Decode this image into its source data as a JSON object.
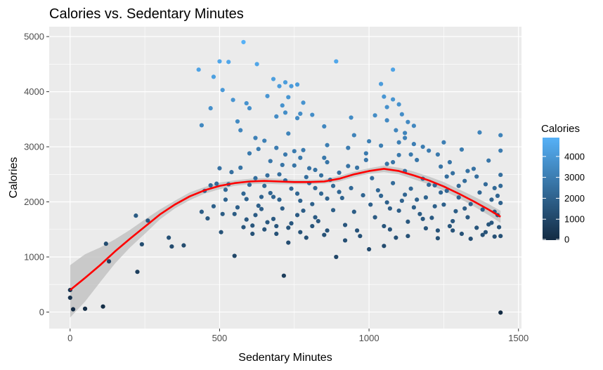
{
  "chart_data": {
    "type": "scatter",
    "title": "Calories vs. Sedentary Minutes",
    "xlabel": "Sedentary Minutes",
    "ylabel": "Calories",
    "xlim": [
      -70,
      1510
    ],
    "ylim": [
      -300,
      5180
    ],
    "x_ticks": [
      0,
      500,
      1000,
      1500
    ],
    "x_tick_labels": [
      "0",
      "500",
      "1000",
      "1500"
    ],
    "y_ticks": [
      0,
      1000,
      2000,
      3000,
      4000,
      5000
    ],
    "y_tick_labels": [
      "0",
      "1000",
      "2000",
      "3000",
      "4000",
      "5000"
    ],
    "grid": true,
    "panel_background": "#ebebeb",
    "color_scale": {
      "low": "#132b43",
      "high": "#56b1f7",
      "min": 0,
      "max": 4900
    },
    "legend": {
      "title": "Calories",
      "position": "right",
      "breaks": [
        0,
        1000,
        2000,
        3000,
        4000
      ],
      "labels": [
        "0",
        "1000",
        "2000",
        "3000",
        "4000"
      ]
    },
    "smooth": {
      "color": "#ff0000",
      "band_color": "#bebebe",
      "x": [
        0,
        50,
        100,
        150,
        200,
        250,
        300,
        350,
        400,
        450,
        500,
        550,
        600,
        650,
        700,
        750,
        800,
        850,
        900,
        950,
        1000,
        1050,
        1100,
        1150,
        1200,
        1250,
        1300,
        1350,
        1400,
        1440
      ],
      "y": [
        400,
        620,
        850,
        1100,
        1330,
        1550,
        1770,
        1950,
        2100,
        2210,
        2290,
        2340,
        2370,
        2380,
        2370,
        2360,
        2360,
        2370,
        2420,
        2500,
        2560,
        2600,
        2560,
        2480,
        2390,
        2280,
        2150,
        2010,
        1860,
        1730
      ],
      "lower": [
        -100,
        190,
        540,
        880,
        1170,
        1420,
        1680,
        1880,
        2030,
        2150,
        2230,
        2290,
        2320,
        2330,
        2320,
        2320,
        2320,
        2330,
        2370,
        2450,
        2510,
        2540,
        2500,
        2410,
        2320,
        2200,
        2070,
        1920,
        1760,
        1620
      ],
      "upper": [
        850,
        1050,
        1170,
        1320,
        1490,
        1680,
        1860,
        2020,
        2170,
        2270,
        2350,
        2390,
        2420,
        2430,
        2420,
        2400,
        2400,
        2410,
        2470,
        2550,
        2610,
        2660,
        2620,
        2550,
        2460,
        2360,
        2230,
        2100,
        1960,
        1840
      ]
    },
    "points": [
      {
        "x": 0,
        "y": 400
      },
      {
        "x": 0,
        "y": 260
      },
      {
        "x": 10,
        "y": 50
      },
      {
        "x": 50,
        "y": 60
      },
      {
        "x": 110,
        "y": 100
      },
      {
        "x": 120,
        "y": 1240
      },
      {
        "x": 130,
        "y": 920
      },
      {
        "x": 220,
        "y": 1750
      },
      {
        "x": 225,
        "y": 730
      },
      {
        "x": 240,
        "y": 1230
      },
      {
        "x": 260,
        "y": 1660
      },
      {
        "x": 330,
        "y": 1350
      },
      {
        "x": 340,
        "y": 1190
      },
      {
        "x": 380,
        "y": 1210
      },
      {
        "x": 430,
        "y": 4400
      },
      {
        "x": 440,
        "y": 3390
      },
      {
        "x": 470,
        "y": 3700
      },
      {
        "x": 480,
        "y": 4270
      },
      {
        "x": 500,
        "y": 4550
      },
      {
        "x": 510,
        "y": 4030
      },
      {
        "x": 530,
        "y": 4540
      },
      {
        "x": 580,
        "y": 4900
      },
      {
        "x": 625,
        "y": 4500
      },
      {
        "x": 890,
        "y": 4550
      },
      {
        "x": 1080,
        "y": 4400
      },
      {
        "x": 1040,
        "y": 4140
      },
      {
        "x": 545,
        "y": 3850
      },
      {
        "x": 570,
        "y": 3300
      },
      {
        "x": 590,
        "y": 3790
      },
      {
        "x": 600,
        "y": 3700
      },
      {
        "x": 680,
        "y": 4230
      },
      {
        "x": 700,
        "y": 4100
      },
      {
        "x": 720,
        "y": 4170
      },
      {
        "x": 740,
        "y": 4100
      },
      {
        "x": 760,
        "y": 4130
      },
      {
        "x": 780,
        "y": 3800
      },
      {
        "x": 660,
        "y": 3920
      },
      {
        "x": 720,
        "y": 3620
      },
      {
        "x": 810,
        "y": 3580
      },
      {
        "x": 850,
        "y": 3370
      },
      {
        "x": 940,
        "y": 3530
      },
      {
        "x": 1050,
        "y": 3910
      },
      {
        "x": 1080,
        "y": 3860
      },
      {
        "x": 1100,
        "y": 3770
      },
      {
        "x": 1110,
        "y": 3590
      },
      {
        "x": 1020,
        "y": 3570
      },
      {
        "x": 1060,
        "y": 3480
      },
      {
        "x": 1130,
        "y": 3450
      },
      {
        "x": 1150,
        "y": 3050
      },
      {
        "x": 1370,
        "y": 3260
      },
      {
        "x": 1440,
        "y": 3210
      },
      {
        "x": 1440,
        "y": 2930
      },
      {
        "x": 1440,
        "y": 2490
      },
      {
        "x": 1440,
        "y": 2290
      },
      {
        "x": 1440,
        "y": 1980
      },
      {
        "x": 1440,
        "y": 1380
      },
      {
        "x": 1440,
        "y": -10
      },
      {
        "x": 1400,
        "y": 2750
      },
      {
        "x": 1420,
        "y": 2250
      },
      {
        "x": 1430,
        "y": 1760
      },
      {
        "x": 1410,
        "y": 1620
      },
      {
        "x": 1380,
        "y": 1400
      },
      {
        "x": 440,
        "y": 1820
      },
      {
        "x": 450,
        "y": 2200
      },
      {
        "x": 460,
        "y": 1700
      },
      {
        "x": 470,
        "y": 2300
      },
      {
        "x": 480,
        "y": 1920
      },
      {
        "x": 490,
        "y": 2330
      },
      {
        "x": 500,
        "y": 2610
      },
      {
        "x": 505,
        "y": 1450
      },
      {
        "x": 510,
        "y": 1780
      },
      {
        "x": 520,
        "y": 2040
      },
      {
        "x": 530,
        "y": 2320
      },
      {
        "x": 540,
        "y": 2540
      },
      {
        "x": 550,
        "y": 1020
      },
      {
        "x": 560,
        "y": 1900
      },
      {
        "x": 570,
        "y": 2620
      },
      {
        "x": 580,
        "y": 2150
      },
      {
        "x": 590,
        "y": 1680
      },
      {
        "x": 600,
        "y": 2880
      },
      {
        "x": 610,
        "y": 1570
      },
      {
        "x": 620,
        "y": 2430
      },
      {
        "x": 630,
        "y": 2960
      },
      {
        "x": 640,
        "y": 1870
      },
      {
        "x": 650,
        "y": 2290
      },
      {
        "x": 660,
        "y": 1630
      },
      {
        "x": 670,
        "y": 2740
      },
      {
        "x": 680,
        "y": 2090
      },
      {
        "x": 690,
        "y": 1420
      },
      {
        "x": 700,
        "y": 2500
      },
      {
        "x": 710,
        "y": 1880
      },
      {
        "x": 715,
        "y": 660
      },
      {
        "x": 720,
        "y": 2860
      },
      {
        "x": 730,
        "y": 1530
      },
      {
        "x": 740,
        "y": 2240
      },
      {
        "x": 750,
        "y": 2660
      },
      {
        "x": 760,
        "y": 1760
      },
      {
        "x": 770,
        "y": 2020
      },
      {
        "x": 780,
        "y": 2940
      },
      {
        "x": 790,
        "y": 1350
      },
      {
        "x": 800,
        "y": 2340
      },
      {
        "x": 810,
        "y": 1960
      },
      {
        "x": 820,
        "y": 2580
      },
      {
        "x": 830,
        "y": 1650
      },
      {
        "x": 840,
        "y": 2150
      },
      {
        "x": 850,
        "y": 2800
      },
      {
        "x": 860,
        "y": 1480
      },
      {
        "x": 870,
        "y": 2400
      },
      {
        "x": 880,
        "y": 1850
      },
      {
        "x": 890,
        "y": 1000
      },
      {
        "x": 900,
        "y": 2530
      },
      {
        "x": 910,
        "y": 2070
      },
      {
        "x": 920,
        "y": 1580
      },
      {
        "x": 930,
        "y": 2980
      },
      {
        "x": 940,
        "y": 2250
      },
      {
        "x": 950,
        "y": 1820
      },
      {
        "x": 960,
        "y": 2620
      },
      {
        "x": 970,
        "y": 1380
      },
      {
        "x": 980,
        "y": 2120
      },
      {
        "x": 990,
        "y": 2880
      },
      {
        "x": 1000,
        "y": 1140
      },
      {
        "x": 1005,
        "y": 1950
      },
      {
        "x": 1010,
        "y": 2430
      },
      {
        "x": 1020,
        "y": 1720
      },
      {
        "x": 1030,
        "y": 2210
      },
      {
        "x": 1040,
        "y": 3020
      },
      {
        "x": 1050,
        "y": 1560
      },
      {
        "x": 1060,
        "y": 2690
      },
      {
        "x": 1070,
        "y": 1880
      },
      {
        "x": 1080,
        "y": 2340
      },
      {
        "x": 1090,
        "y": 1350
      },
      {
        "x": 1100,
        "y": 2850
      },
      {
        "x": 1110,
        "y": 2020
      },
      {
        "x": 1120,
        "y": 2560
      },
      {
        "x": 1130,
        "y": 1640
      },
      {
        "x": 1140,
        "y": 2240
      },
      {
        "x": 1150,
        "y": 1900
      },
      {
        "x": 1160,
        "y": 2760
      },
      {
        "x": 1170,
        "y": 1780
      },
      {
        "x": 1180,
        "y": 2420
      },
      {
        "x": 1190,
        "y": 2080
      },
      {
        "x": 1200,
        "y": 2930
      },
      {
        "x": 1210,
        "y": 1710
      },
      {
        "x": 1220,
        "y": 2300
      },
      {
        "x": 1230,
        "y": 1480
      },
      {
        "x": 1240,
        "y": 2640
      },
      {
        "x": 1250,
        "y": 1950
      },
      {
        "x": 1260,
        "y": 2200
      },
      {
        "x": 1270,
        "y": 1560
      },
      {
        "x": 1280,
        "y": 2520
      },
      {
        "x": 1290,
        "y": 1830
      },
      {
        "x": 1300,
        "y": 2080
      },
      {
        "x": 1310,
        "y": 1420
      },
      {
        "x": 1320,
        "y": 2380
      },
      {
        "x": 1330,
        "y": 1720
      },
      {
        "x": 1340,
        "y": 1960
      },
      {
        "x": 1350,
        "y": 2600
      },
      {
        "x": 1360,
        "y": 1530
      },
      {
        "x": 1370,
        "y": 2170
      },
      {
        "x": 1380,
        "y": 1860
      },
      {
        "x": 1390,
        "y": 2320
      },
      {
        "x": 1400,
        "y": 1590
      },
      {
        "x": 1410,
        "y": 2040
      },
      {
        "x": 1420,
        "y": 1820
      },
      {
        "x": 1430,
        "y": 2110
      },
      {
        "x": 1435,
        "y": 1540
      },
      {
        "x": 600,
        "y": 2310
      },
      {
        "x": 620,
        "y": 1760
      },
      {
        "x": 640,
        "y": 2090
      },
      {
        "x": 660,
        "y": 2480
      },
      {
        "x": 680,
        "y": 1690
      },
      {
        "x": 700,
        "y": 2040
      },
      {
        "x": 720,
        "y": 2390
      },
      {
        "x": 740,
        "y": 1610
      },
      {
        "x": 760,
        "y": 2150
      },
      {
        "x": 780,
        "y": 1840
      },
      {
        "x": 800,
        "y": 2610
      },
      {
        "x": 820,
        "y": 1720
      },
      {
        "x": 840,
        "y": 2480
      },
      {
        "x": 860,
        "y": 2060
      },
      {
        "x": 880,
        "y": 2290
      },
      {
        "x": 1040,
        "y": 2110
      },
      {
        "x": 1060,
        "y": 1990
      },
      {
        "x": 1080,
        "y": 2720
      },
      {
        "x": 1100,
        "y": 1840
      },
      {
        "x": 1120,
        "y": 2130
      },
      {
        "x": 1140,
        "y": 2860
      },
      {
        "x": 1160,
        "y": 2040
      },
      {
        "x": 1180,
        "y": 1690
      },
      {
        "x": 1200,
        "y": 2310
      },
      {
        "x": 1220,
        "y": 1920
      },
      {
        "x": 1240,
        "y": 2170
      },
      {
        "x": 1260,
        "y": 2460
      },
      {
        "x": 1280,
        "y": 1650
      },
      {
        "x": 1300,
        "y": 2290
      },
      {
        "x": 1320,
        "y": 1880
      },
      {
        "x": 650,
        "y": 3110
      },
      {
        "x": 690,
        "y": 2980
      },
      {
        "x": 730,
        "y": 3240
      },
      {
        "x": 770,
        "y": 2800
      },
      {
        "x": 1120,
        "y": 3160
      },
      {
        "x": 1180,
        "y": 3000
      },
      {
        "x": 1230,
        "y": 2860
      },
      {
        "x": 1270,
        "y": 2720
      },
      {
        "x": 1330,
        "y": 2560
      },
      {
        "x": 1360,
        "y": 2460
      },
      {
        "x": 560,
        "y": 3460
      },
      {
        "x": 620,
        "y": 3160
      },
      {
        "x": 760,
        "y": 3520
      },
      {
        "x": 860,
        "y": 3030
      },
      {
        "x": 950,
        "y": 3210
      },
      {
        "x": 1000,
        "y": 3100
      },
      {
        "x": 1090,
        "y": 3300
      },
      {
        "x": 1150,
        "y": 3380
      },
      {
        "x": 1250,
        "y": 3080
      },
      {
        "x": 1310,
        "y": 2950
      },
      {
        "x": 580,
        "y": 1540
      },
      {
        "x": 610,
        "y": 1420
      },
      {
        "x": 650,
        "y": 1500
      },
      {
        "x": 690,
        "y": 1560
      },
      {
        "x": 730,
        "y": 1260
      },
      {
        "x": 770,
        "y": 1450
      },
      {
        "x": 810,
        "y": 1560
      },
      {
        "x": 850,
        "y": 1400
      },
      {
        "x": 920,
        "y": 1300
      },
      {
        "x": 960,
        "y": 1480
      },
      {
        "x": 1050,
        "y": 1200
      },
      {
        "x": 1070,
        "y": 1500
      },
      {
        "x": 1130,
        "y": 1380
      },
      {
        "x": 1190,
        "y": 1520
      },
      {
        "x": 1230,
        "y": 1340
      },
      {
        "x": 1280,
        "y": 1480
      },
      {
        "x": 1340,
        "y": 1330
      },
      {
        "x": 1390,
        "y": 1450
      },
      {
        "x": 1420,
        "y": 1370
      },
      {
        "x": 710,
        "y": 3750
      },
      {
        "x": 730,
        "y": 3900
      },
      {
        "x": 770,
        "y": 3600
      },
      {
        "x": 690,
        "y": 3550
      },
      {
        "x": 1060,
        "y": 3720
      },
      {
        "x": 1120,
        "y": 3250
      },
      {
        "x": 1100,
        "y": 3080
      },
      {
        "x": 990,
        "y": 2760
      },
      {
        "x": 930,
        "y": 2650
      },
      {
        "x": 900,
        "y": 2180
      },
      {
        "x": 860,
        "y": 2720
      },
      {
        "x": 820,
        "y": 2250
      },
      {
        "x": 790,
        "y": 2450
      },
      {
        "x": 750,
        "y": 2920
      },
      {
        "x": 710,
        "y": 2670
      },
      {
        "x": 670,
        "y": 2160
      },
      {
        "x": 630,
        "y": 1930
      },
      {
        "x": 590,
        "y": 2050
      },
      {
        "x": 550,
        "y": 1780
      },
      {
        "x": 520,
        "y": 2220
      }
    ]
  }
}
